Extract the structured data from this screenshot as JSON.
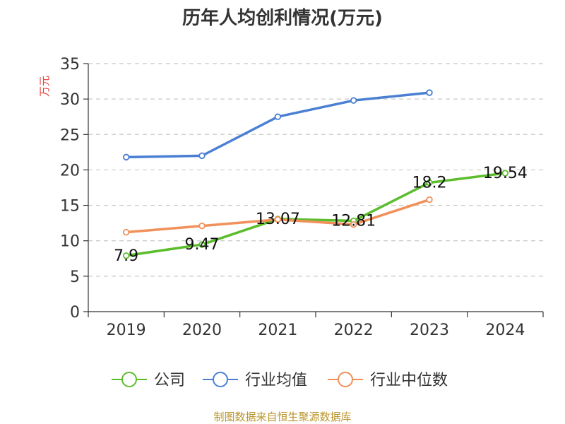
{
  "chart_data": {
    "type": "line",
    "title": "历年人均创利情况(万元)",
    "ylabel": "万元",
    "xlabel": "",
    "ylim": [
      0,
      35
    ],
    "yticks": [
      0,
      5,
      10,
      15,
      20,
      25,
      30,
      35
    ],
    "categories": [
      "2019",
      "2020",
      "2021",
      "2022",
      "2023",
      "2024"
    ],
    "grid": "horizontal-dashed",
    "legend": "bottom",
    "series": [
      {
        "name": "公司",
        "color": "#5bbd2b",
        "values": [
          7.9,
          9.47,
          13.07,
          12.81,
          18.2,
          19.54
        ],
        "labels": [
          "7.9",
          "9.47",
          "13.07",
          "12.81",
          "18.2",
          "19.54"
        ]
      },
      {
        "name": "行业均值",
        "color": "#4a7fd4",
        "values": [
          21.8,
          22.0,
          27.5,
          29.8,
          30.9,
          null
        ]
      },
      {
        "name": "行业中位数",
        "color": "#f0905a",
        "values": [
          11.2,
          12.1,
          13.0,
          12.3,
          15.8,
          null
        ]
      }
    ]
  },
  "footer": "制图数据来自恒生聚源数据库"
}
